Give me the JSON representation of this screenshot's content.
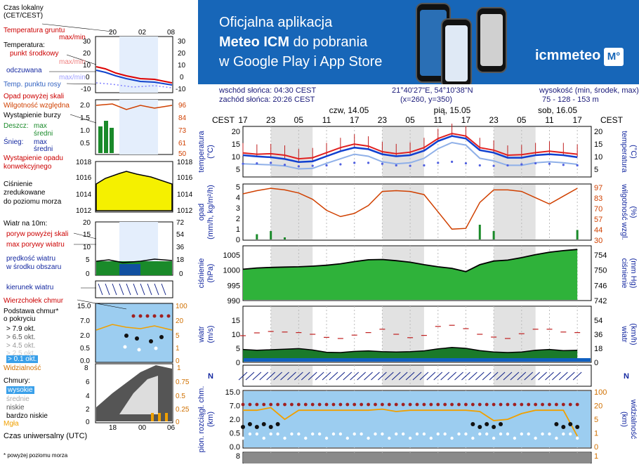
{
  "banner": {
    "line1": "Oficjalna aplikacja",
    "line2_bold": "Meteo ICM",
    "line2_rest": " do pobrania",
    "line3": "w Google Play i App Store",
    "logo_text": "icmmeteo",
    "logo_badge": "M°",
    "colors": {
      "background": "#1766b8",
      "text": "#ffffff"
    }
  },
  "header": {
    "sunrise": "wschód słońca: 04:30 CEST",
    "sunset": "zachód słońca: 20:26 CEST",
    "coords": "21°40'27\"E, 54°10'38\"N",
    "grid": "(x=260,  y=350)",
    "elev_label": "wysokość (min, środek, max)",
    "elev_values": "75 - 128 - 153 m"
  },
  "timeline": {
    "tz_left": "CEST",
    "tz_right": "CEST",
    "days": [
      "czw, 14.05",
      "pią, 15.05",
      "sob, 16.05"
    ],
    "hours": [
      "17",
      "23",
      "05",
      "11",
      "17",
      "23",
      "05",
      "11",
      "17",
      "23",
      "05",
      "11",
      "17"
    ]
  },
  "legend": {
    "time_label": "Czas lokalny\n(CET/CEST)",
    "time_ticks": [
      "20",
      "02",
      "08"
    ],
    "temp_ground": "Temperatura gruntu",
    "temp_ground_sub": "max/min",
    "temp": "Temperatura:",
    "temp_mid": "punkt środkowy",
    "temp_max": "max/min",
    "temp_feel": "odczuwana",
    "temp_feel_sub": "max/min",
    "temp_dew": "Temp. punktu rosy",
    "temp_ticks_l": [
      "30",
      "20",
      "10",
      "0",
      "-10"
    ],
    "temp_ticks_r": [
      "30",
      "20",
      "10",
      "0",
      "-10"
    ],
    "precip_title": "Opad powyżej skali",
    "humidity": "Wilgotność względna",
    "storm": "Wystąpienie burzy",
    "rain": "Deszcz:",
    "rain_max": "max",
    "rain_mean": "średni",
    "snow": "Śnieg:",
    "snow_max": "max",
    "snow_mean": "średni",
    "precip_occ": "Wystąpienie opadu",
    "precip_occ2": "konwekcyjnego",
    "precip_ticks_l": [
      "2.0",
      "1.5",
      "1.0",
      "0.5"
    ],
    "precip_ticks_r": [
      "96",
      "84",
      "73",
      "61",
      "50"
    ],
    "pressure_title": "Ciśnienie",
    "pressure_sub1": "zredukowane",
    "pressure_sub2": "do poziomu morza",
    "pressure_ticks": [
      "1018",
      "1016",
      "1014",
      "1012"
    ],
    "wind_title": "Wiatr na 10m:",
    "wind_gust_scale": "poryw powyżej skali",
    "wind_gust_max": "max porywy wiatru",
    "wind_speed": "prędkość wiatru",
    "wind_area": "w środku obszaru",
    "wind_ticks_l": [
      "20",
      "15",
      "10",
      "5",
      "0"
    ],
    "wind_ticks_r": [
      "72",
      "54",
      "36",
      "18",
      "0"
    ],
    "wind_dir": "kierunek wiatru",
    "cloud_top": "Wierzchołek chmur",
    "cloud_base": "Podstawa chmur*",
    "cloud_base2": "o pokryciu",
    "cover_levels": [
      "> 7.9 okt.",
      "> 6.5 okt.",
      "> 4.5 okt.",
      "> 2.5 okt.",
      "> 0.1 okt."
    ],
    "cloud_ticks_l": [
      "15.0",
      "7.0",
      "2.0",
      "0.5",
      "0.0"
    ],
    "cloud_ticks_r": [
      "100",
      "20",
      "5",
      "1",
      "0"
    ],
    "visibility": "Widzialność",
    "clouds": "Chmury:",
    "high": "wysokie",
    "mid": "średnie",
    "low": "niskie",
    "very_low": "bardzo niskie",
    "fog": "Mgła",
    "clouds_ticks_l": [
      "6",
      "4",
      "2",
      "0"
    ],
    "clouds_ticks_r": [
      "0.75",
      "0.5",
      "0.25",
      "0"
    ],
    "utc_label": "Czas uniwersalny (UTC)",
    "utc_ticks": [
      "18",
      "00",
      "06"
    ],
    "footnote": "* powyżej poziomu morza",
    "sample_axis_l": "8",
    "sample_axis_r": "1"
  },
  "panels": {
    "temp": {
      "ylabel_l": "temperatura\n(°C)",
      "ylabel_r": "temperatura\n(°C)",
      "ticks": [
        "20",
        "15",
        "10",
        "5"
      ]
    },
    "precip": {
      "ylabel_l": "opad\n(mm/h, kg/m²/h)",
      "ylabel_r": "wilgotność wzgl.\n(%)",
      "ticks_l": [
        "5",
        "4",
        "3",
        "2",
        "1",
        "0"
      ],
      "ticks_r": [
        "97",
        "83",
        "70",
        "57",
        "44",
        "30"
      ]
    },
    "pressure": {
      "ylabel_l": "ciśnienie\n(hPa)",
      "ylabel_r": "ciśnienie\n(mm Hg)",
      "ticks_l": [
        "1005",
        "1000",
        "995",
        "990"
      ],
      "ticks_r": [
        "754",
        "750",
        "746",
        "742"
      ]
    },
    "wind": {
      "ylabel_l": "wiatr\n(m/s)",
      "ylabel_r": "wiatr\n(km/h)",
      "ticks_l": [
        "15",
        "10",
        "5",
        "0"
      ],
      "ticks_r": [
        "54",
        "36",
        "18",
        "0"
      ]
    },
    "winddir": {
      "compass_l": "N",
      "compass_r": "N"
    },
    "cloud": {
      "ylabel_l": "pion. rozciągł. chm.\n(km)",
      "ylabel_r": "(km)\nwidzialność",
      "ticks_l": [
        "15.0",
        "7.0",
        "2.0",
        "0.5",
        "0.0"
      ],
      "ticks_r": [
        "100",
        "20",
        "5",
        "1",
        "0"
      ]
    },
    "bottom": {
      "ticks_l": [
        "8"
      ],
      "ticks_r": [
        "1"
      ]
    }
  },
  "chart_data": [
    {
      "type": "line",
      "title": "temperatura",
      "x": [
        0,
        3,
        6,
        9,
        12,
        15,
        18,
        21,
        24,
        27,
        30,
        33,
        36,
        39,
        42,
        45,
        48,
        51,
        54,
        57,
        60,
        63,
        66,
        69,
        72
      ],
      "series": [
        {
          "name": "max",
          "values": [
            11.5,
            11,
            11.2,
            10.6,
            9.2,
            9.6,
            11.6,
            13.6,
            15,
            14.2,
            12,
            11.2,
            11.8,
            13.6,
            17.2,
            19.2,
            18.2,
            13.6,
            12.6,
            10.6,
            10.8,
            11.6,
            12.2,
            11.6,
            11
          ]
        },
        {
          "name": "punkt środkowy",
          "values": [
            10.6,
            10.1,
            9.8,
            9.1,
            7.9,
            8.2,
            10.2,
            12.2,
            13.6,
            13,
            11,
            10.2,
            10.6,
            12.4,
            16.2,
            18.2,
            17.2,
            12.6,
            11.6,
            9.6,
            9.6,
            10.6,
            11,
            10.6,
            9.8
          ]
        },
        {
          "name": "odczuwana",
          "values": [
            7.2,
            7,
            6.8,
            6.4,
            5.2,
            5.4,
            7.4,
            9.2,
            11,
            10.2,
            8,
            7.2,
            7.6,
            9.4,
            13.2,
            15.6,
            14.6,
            9.4,
            8.4,
            6.6,
            6.6,
            7.6,
            8,
            7.6,
            7
          ]
        },
        {
          "name": "punkt rosy",
          "values": [
            7.2,
            7.4,
            7.6,
            6.8,
            6.2,
            6.4,
            6.6,
            7,
            7.6,
            7.6,
            7.2,
            6.6,
            6.4,
            6.6,
            7.6,
            8,
            7.4,
            6.6,
            6.4,
            6.6,
            7,
            7.4,
            7.2,
            6.8,
            6.6
          ]
        }
      ],
      "ylim": [
        2,
        22
      ]
    },
    {
      "type": "line",
      "title": "opad / wilgotność",
      "x": [
        0,
        3,
        6,
        9,
        12,
        15,
        18,
        21,
        24,
        27,
        30,
        33,
        36,
        39,
        42,
        45,
        48,
        51,
        54,
        57,
        60,
        63,
        66,
        69,
        72
      ],
      "series": [
        {
          "name": "wilgotność",
          "values": [
            89,
            93,
            96,
            94,
            90,
            82,
            68,
            60,
            64,
            74,
            92,
            93,
            92,
            88,
            66,
            44,
            45,
            78,
            94,
            94,
            92,
            84,
            76,
            86,
            96
          ]
        },
        {
          "name": "opad",
          "values": [
            0,
            0.5,
            0.8,
            0.2,
            0,
            0,
            0,
            0,
            0,
            0,
            0,
            0,
            0,
            0,
            0,
            0,
            0,
            1.4,
            0.8,
            0,
            0,
            0,
            0,
            0,
            0.9
          ]
        }
      ]
    },
    {
      "type": "area",
      "title": "ciśnienie",
      "x": [
        0,
        3,
        6,
        9,
        12,
        15,
        18,
        21,
        24,
        27,
        30,
        33,
        36,
        39,
        42,
        45,
        48,
        51,
        54,
        57,
        60,
        63,
        66,
        69,
        72
      ],
      "series": [
        {
          "name": "ciśnienie",
          "values": [
            1000.3,
            1000.7,
            1000.9,
            1001,
            1001.1,
            1001.3,
            1001.6,
            1002.1,
            1002.8,
            1003.4,
            1003.5,
            1003.1,
            1002.6,
            1001.8,
            1001.1,
            1000.6,
            999.5,
            1001.8,
            1003,
            1003.3,
            1004.1,
            1005.1,
            1005.9,
            1006.4,
            1006.8
          ]
        }
      ],
      "ylim": [
        990,
        1008
      ]
    },
    {
      "type": "line",
      "title": "wiatr",
      "x": [
        0,
        3,
        6,
        9,
        12,
        15,
        18,
        21,
        24,
        27,
        30,
        33,
        36,
        39,
        42,
        45,
        48,
        51,
        54,
        57,
        60,
        63,
        66,
        69,
        72
      ],
      "series": [
        {
          "name": "prędkość",
          "values": [
            4.6,
            4.3,
            4.5,
            4.7,
            4.9,
            4.4,
            3.6,
            3.5,
            3.9,
            4.1,
            3.8,
            3.7,
            3.8,
            4.1,
            4.8,
            5.3,
            5,
            4.2,
            3.7,
            3.5,
            3.7,
            4.3,
            4.6,
            4.2,
            4.3
          ]
        },
        {
          "name": "porywy",
          "values": [
            9.5,
            10.5,
            11,
            10.8,
            10.6,
            10,
            8.9,
            8.5,
            9.7,
            10.6,
            11.8,
            10,
            8.8,
            9.6,
            12.8,
            13.2,
            12,
            10,
            9,
            8.5,
            10.2,
            11.8,
            11.8,
            10.8,
            10.6
          ]
        }
      ],
      "ylim": [
        0,
        20
      ]
    },
    {
      "type": "line",
      "title": "widzialność",
      "x": [
        0,
        3,
        6,
        9,
        12,
        15,
        18,
        21,
        24,
        27,
        30,
        33,
        36,
        39,
        42,
        45,
        48,
        51,
        54,
        57,
        60,
        63,
        66,
        69,
        72
      ],
      "series": [
        {
          "name": "widzialność",
          "values": [
            20,
            20,
            25,
            9,
            20,
            20,
            20,
            20,
            20,
            20,
            22,
            18,
            20,
            20,
            20,
            20,
            20,
            18,
            8,
            9,
            15,
            20,
            20,
            20,
            1.5
          ]
        }
      ]
    }
  ]
}
